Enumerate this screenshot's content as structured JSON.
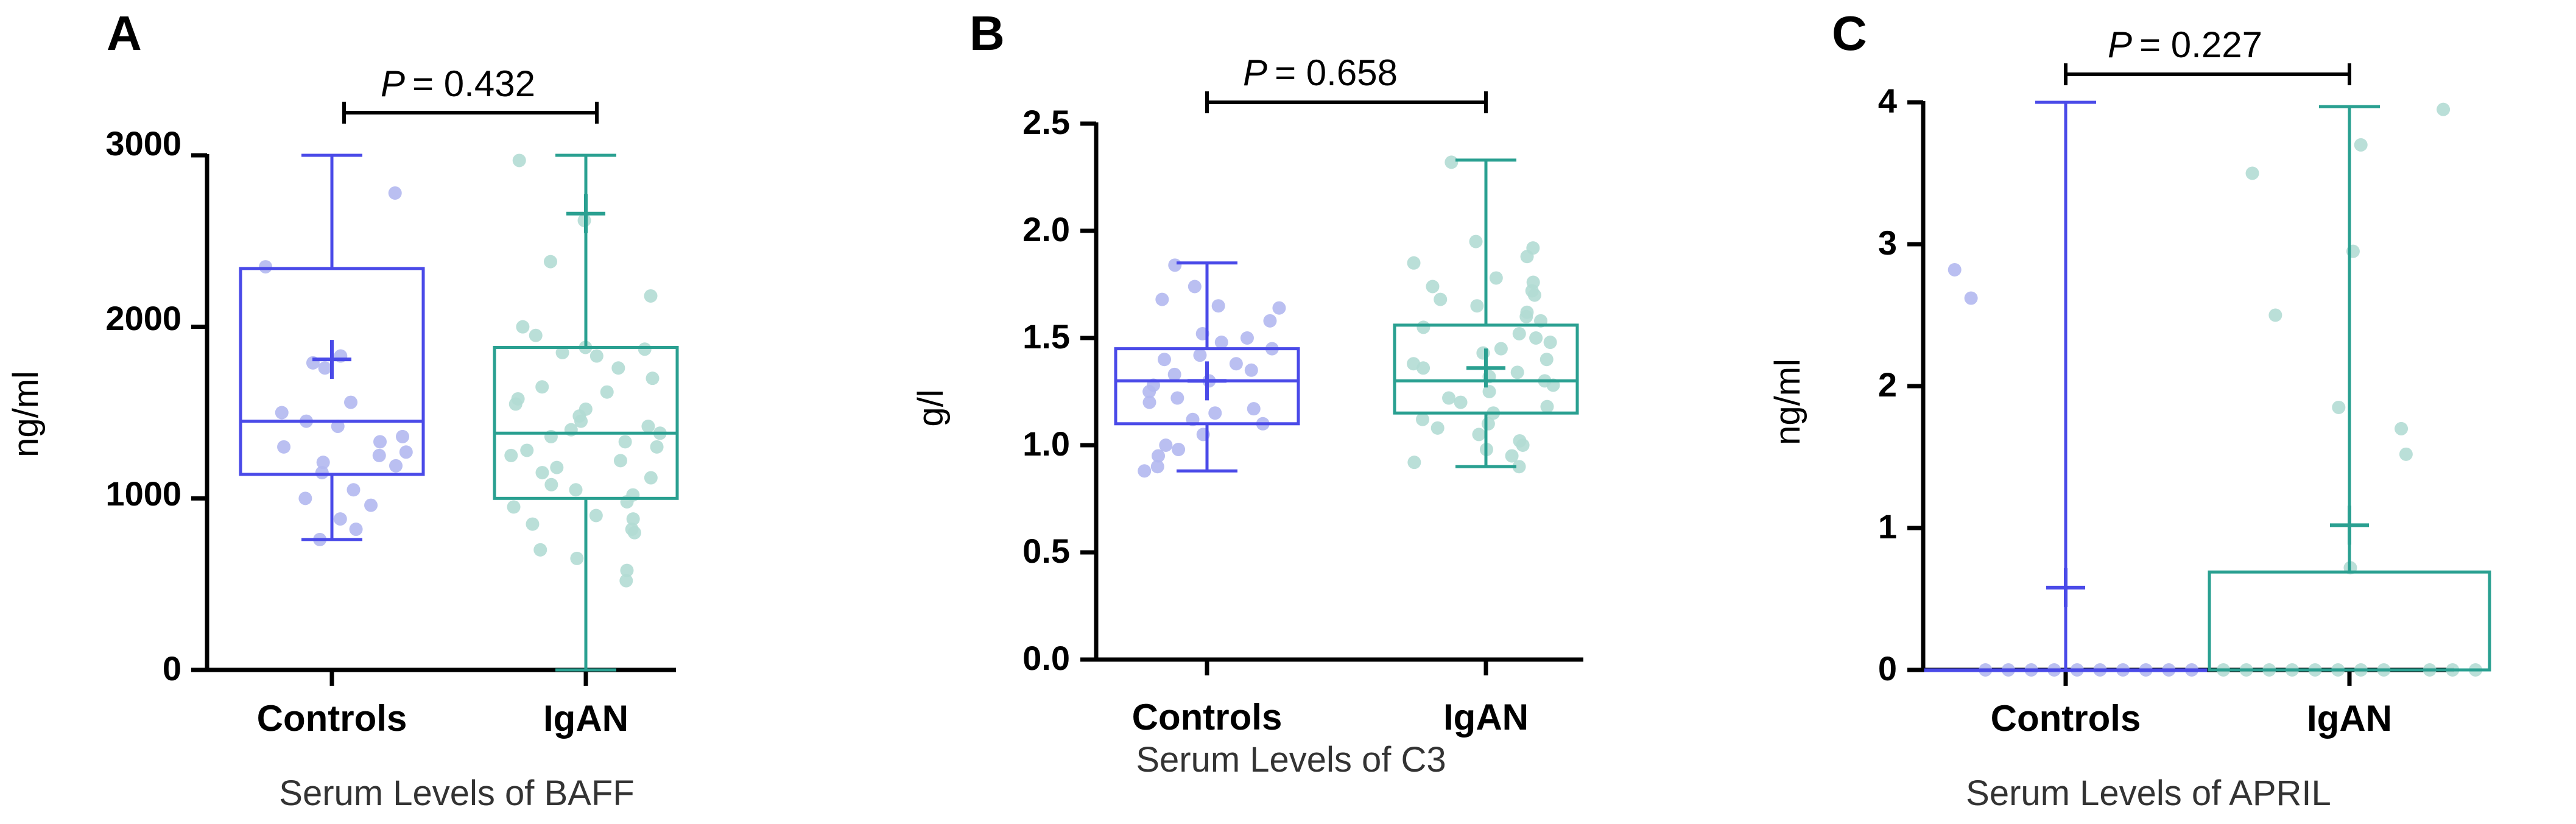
{
  "chart_data": [
    {
      "type": "box",
      "panel_label": "A",
      "xlabel": "Serum Levels of BAFF",
      "ylabel": "ng/ml",
      "ylim": [
        0,
        3000
      ],
      "yticks": [
        0,
        1000,
        2000,
        3000
      ],
      "ytick_labels": [
        "0",
        "1000",
        "2000",
        "3000"
      ],
      "categories": [
        "Controls",
        "IgAN"
      ],
      "p_label": "P",
      "p_value": "= 0.432",
      "series": [
        {
          "name": "Controls",
          "color": "#4a4ae8",
          "point_color": "#b3b8ef",
          "min": 760,
          "q1": 1140,
          "median": 1450,
          "q3": 2340,
          "max": 3000,
          "mean": 1810,
          "points": [
            2780,
            2350,
            1830,
            1790,
            1760,
            1560,
            1500,
            1450,
            1420,
            1360,
            1330,
            1300,
            1270,
            1250,
            1210,
            1190,
            1150,
            1050,
            1000,
            960,
            880,
            820,
            760
          ]
        },
        {
          "name": "IgAN",
          "color": "#2aa091",
          "point_color": "#b2dcd4",
          "min": 0,
          "q1": 1000,
          "median": 1380,
          "q3": 1880,
          "max": 3000,
          "mean": 2660,
          "points": [
            2970,
            2620,
            2380,
            2180,
            2000,
            1950,
            1880,
            1870,
            1850,
            1830,
            1760,
            1700,
            1650,
            1620,
            1580,
            1550,
            1520,
            1480,
            1450,
            1420,
            1400,
            1380,
            1360,
            1330,
            1300,
            1280,
            1250,
            1220,
            1180,
            1150,
            1120,
            1080,
            1050,
            1020,
            980,
            950,
            900,
            880,
            850,
            820,
            800,
            700,
            650,
            580,
            520
          ]
        }
      ]
    },
    {
      "type": "box",
      "panel_label": "B",
      "xlabel": "Serum Levels of C3",
      "ylabel": "g/l",
      "ylim": [
        0,
        2.5
      ],
      "yticks": [
        0,
        0.5,
        1.0,
        1.5,
        2.0,
        2.5
      ],
      "ytick_labels": [
        "0.0",
        "0.5",
        "1.0",
        "1.5",
        "2.0",
        "2.5"
      ],
      "categories": [
        "Controls",
        "IgAN"
      ],
      "p_label": "P",
      "p_value": "= 0.658",
      "series": [
        {
          "name": "Controls",
          "color": "#4a4ae8",
          "point_color": "#b3b8ef",
          "min": 0.88,
          "q1": 1.1,
          "median": 1.3,
          "q3": 1.45,
          "max": 1.85,
          "mean": 1.3,
          "points": [
            1.84,
            1.74,
            1.68,
            1.65,
            1.64,
            1.58,
            1.52,
            1.5,
            1.48,
            1.45,
            1.42,
            1.4,
            1.38,
            1.35,
            1.33,
            1.3,
            1.28,
            1.25,
            1.22,
            1.2,
            1.17,
            1.15,
            1.12,
            1.1,
            1.05,
            1.0,
            0.98,
            0.95,
            0.9,
            0.88
          ]
        },
        {
          "name": "IgAN",
          "color": "#2aa091",
          "point_color": "#b2dcd4",
          "min": 0.9,
          "q1": 1.15,
          "median": 1.3,
          "q3": 1.56,
          "max": 2.33,
          "mean": 1.36,
          "points": [
            2.32,
            1.95,
            1.92,
            1.88,
            1.85,
            1.78,
            1.76,
            1.74,
            1.72,
            1.7,
            1.68,
            1.65,
            1.62,
            1.6,
            1.58,
            1.55,
            1.52,
            1.5,
            1.48,
            1.45,
            1.43,
            1.4,
            1.38,
            1.36,
            1.34,
            1.32,
            1.3,
            1.28,
            1.25,
            1.22,
            1.2,
            1.18,
            1.15,
            1.12,
            1.1,
            1.08,
            1.05,
            1.02,
            1.0,
            0.98,
            0.95,
            0.92,
            0.9
          ]
        }
      ]
    },
    {
      "type": "box",
      "panel_label": "C",
      "xlabel": "Serum Levels of APRIL",
      "ylabel": "ng/ml",
      "ylim": [
        0,
        4
      ],
      "yticks": [
        0,
        1,
        2,
        3,
        4
      ],
      "ytick_labels": [
        "0",
        "1",
        "2",
        "3",
        "4"
      ],
      "categories": [
        "Controls",
        "IgAN"
      ],
      "p_label": "P",
      "p_value": "= 0.227",
      "series": [
        {
          "name": "Controls",
          "color": "#4a4ae8",
          "point_color": "#b3b8ef",
          "min": 0,
          "q1": 0,
          "median": 0,
          "q3": 0,
          "max": 4.0,
          "mean": 0.58,
          "points": [
            2.82,
            2.62,
            0,
            0,
            0,
            0,
            0,
            0,
            0,
            0,
            0,
            0
          ]
        },
        {
          "name": "IgAN",
          "color": "#2aa091",
          "point_color": "#b2dcd4",
          "min": 0,
          "q1": 0,
          "median": 0,
          "q3": 0.69,
          "max": 3.97,
          "mean": 1.02,
          "points": [
            3.95,
            3.7,
            3.5,
            2.95,
            2.5,
            1.85,
            1.7,
            1.52,
            0.72,
            0,
            0,
            0,
            0,
            0,
            0,
            0,
            0,
            0,
            0,
            0
          ]
        }
      ]
    }
  ]
}
